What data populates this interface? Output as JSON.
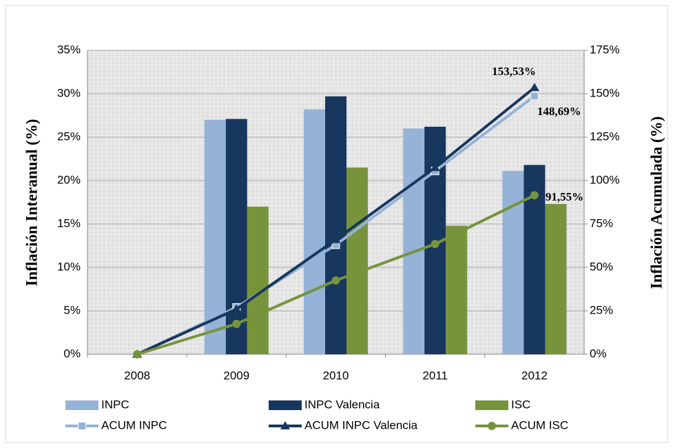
{
  "chart_data": {
    "type": "bar",
    "y_label": "Inflación Interanual  (%)",
    "y2_label": "Inflación Acumulada (%)",
    "categories": [
      "2008",
      "2009",
      "2010",
      "2011",
      "2012"
    ],
    "ylim": [
      0,
      35
    ],
    "yticks": [
      {
        "value": 0,
        "label": "0%"
      },
      {
        "value": 5,
        "label": "5%"
      },
      {
        "value": 10,
        "label": "10%"
      },
      {
        "value": 15,
        "label": "15%"
      },
      {
        "value": 20,
        "label": "20%"
      },
      {
        "value": 25,
        "label": "25%"
      },
      {
        "value": 30,
        "label": "30%"
      },
      {
        "value": 35,
        "label": "35%"
      }
    ],
    "y2lim": [
      0,
      175
    ],
    "y2ticks": [
      {
        "value": 0,
        "label": "0%"
      },
      {
        "value": 25,
        "label": "25%"
      },
      {
        "value": 50,
        "label": "50%"
      },
      {
        "value": 75,
        "label": "75%"
      },
      {
        "value": 100,
        "label": "100%"
      },
      {
        "value": 125,
        "label": "125%"
      },
      {
        "value": 150,
        "label": "150%"
      },
      {
        "value": 175,
        "label": "175%"
      }
    ],
    "grid": true,
    "legend": "bottom",
    "series": [
      {
        "name": "INPC",
        "type": "bar",
        "color": "#95b3d7",
        "values": [
          0,
          27.0,
          28.2,
          26.0,
          21.1
        ]
      },
      {
        "name": "INPC Valencia",
        "type": "bar",
        "color": "#17375e",
        "values": [
          0,
          27.1,
          29.7,
          26.2,
          21.8
        ]
      },
      {
        "name": "ISC",
        "type": "bar",
        "color": "#77933c",
        "values": [
          0,
          17.0,
          21.5,
          14.8,
          17.3
        ]
      },
      {
        "name": "ACUM INPC",
        "type": "line",
        "axis": "y2",
        "marker": "square",
        "color": "#95b3d7",
        "values": [
          0,
          27,
          63,
          105.5,
          148.69
        ],
        "value_labels": [
          null,
          null,
          null,
          null,
          "148,69%"
        ]
      },
      {
        "name": "ACUM INPC Valencia",
        "type": "line",
        "axis": "y2",
        "marker": "triangle",
        "color": "#17375e",
        "values": [
          0,
          26,
          66,
          107.5,
          153.53
        ],
        "value_labels": [
          null,
          null,
          null,
          null,
          "153,53%"
        ]
      },
      {
        "name": "ACUM ISC",
        "type": "line",
        "axis": "y2",
        "marker": "circle",
        "color": "#77933c",
        "values": [
          0,
          17.5,
          42.5,
          63.5,
          91.55
        ],
        "value_labels": [
          null,
          null,
          null,
          null,
          "91,55%"
        ]
      }
    ]
  }
}
